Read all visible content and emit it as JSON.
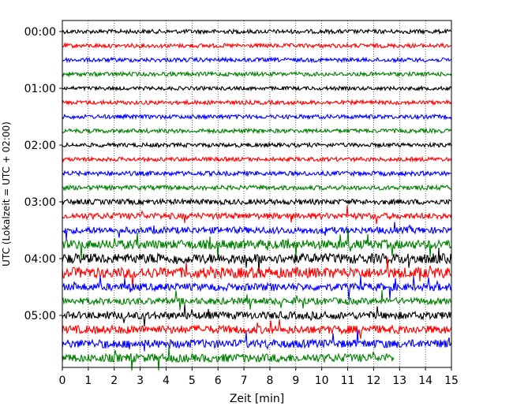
{
  "chart_data": {
    "type": "line",
    "title": "",
    "xlabel": "Zeit  [min]",
    "ylabel": "UTC (Lokalzeit = UTC + 02:00)",
    "xlim": [
      0,
      15
    ],
    "x_ticks": [
      0,
      1,
      2,
      3,
      4,
      5,
      6,
      7,
      8,
      9,
      10,
      11,
      12,
      13,
      14,
      15
    ],
    "x_tick_labels": [
      "0",
      "1",
      "2",
      "3",
      "4",
      "5",
      "6",
      "7",
      "8",
      "9",
      "10",
      "11",
      "12",
      "13",
      "14",
      "15"
    ],
    "y_tick_labels": [
      "00:00",
      "01:00",
      "02:00",
      "03:00",
      "04:00",
      "05:00"
    ],
    "grid": "vertical dotted",
    "line_colors": [
      "#000000",
      "#ff0000",
      "#0000ff",
      "#008000"
    ],
    "rows_per_hour": 4,
    "row_minutes": 15,
    "rows": [
      {
        "start": "00:00",
        "color": "#000000",
        "end_min": 15,
        "amp": 1.0
      },
      {
        "start": "00:15",
        "color": "#ff0000",
        "end_min": 15,
        "amp": 1.0
      },
      {
        "start": "00:30",
        "color": "#0000ff",
        "end_min": 15,
        "amp": 1.0
      },
      {
        "start": "00:45",
        "color": "#008000",
        "end_min": 15,
        "amp": 1.0
      },
      {
        "start": "01:00",
        "color": "#000000",
        "end_min": 15,
        "amp": 0.9
      },
      {
        "start": "01:15",
        "color": "#ff0000",
        "end_min": 15,
        "amp": 1.0
      },
      {
        "start": "01:30",
        "color": "#0000ff",
        "end_min": 15,
        "amp": 1.0
      },
      {
        "start": "01:45",
        "color": "#008000",
        "end_min": 15,
        "amp": 1.0
      },
      {
        "start": "02:00",
        "color": "#000000",
        "end_min": 15,
        "amp": 1.0
      },
      {
        "start": "02:15",
        "color": "#ff0000",
        "end_min": 15,
        "amp": 1.0
      },
      {
        "start": "02:30",
        "color": "#0000ff",
        "end_min": 15,
        "amp": 1.1
      },
      {
        "start": "02:45",
        "color": "#008000",
        "end_min": 15,
        "amp": 1.1
      },
      {
        "start": "03:00",
        "color": "#000000",
        "end_min": 15,
        "amp": 1.3
      },
      {
        "start": "03:15",
        "color": "#ff0000",
        "end_min": 15,
        "amp": 1.5
      },
      {
        "start": "03:30",
        "color": "#0000ff",
        "end_min": 15,
        "amp": 1.6
      },
      {
        "start": "03:45",
        "color": "#008000",
        "end_min": 15,
        "amp": 2.2
      },
      {
        "start": "04:00",
        "color": "#000000",
        "end_min": 15,
        "amp": 2.4
      },
      {
        "start": "04:15",
        "color": "#ff0000",
        "end_min": 15,
        "amp": 2.6
      },
      {
        "start": "04:30",
        "color": "#0000ff",
        "end_min": 15,
        "amp": 1.8
      },
      {
        "start": "04:45",
        "color": "#008000",
        "end_min": 15,
        "amp": 1.6
      },
      {
        "start": "05:00",
        "color": "#000000",
        "end_min": 15,
        "amp": 1.8
      },
      {
        "start": "05:15",
        "color": "#ff0000",
        "end_min": 15,
        "amp": 2.0
      },
      {
        "start": "05:30",
        "color": "#0000ff",
        "end_min": 15,
        "amp": 2.0
      },
      {
        "start": "05:45",
        "color": "#008000",
        "end_min": 12.8,
        "amp": 2.0
      }
    ]
  }
}
